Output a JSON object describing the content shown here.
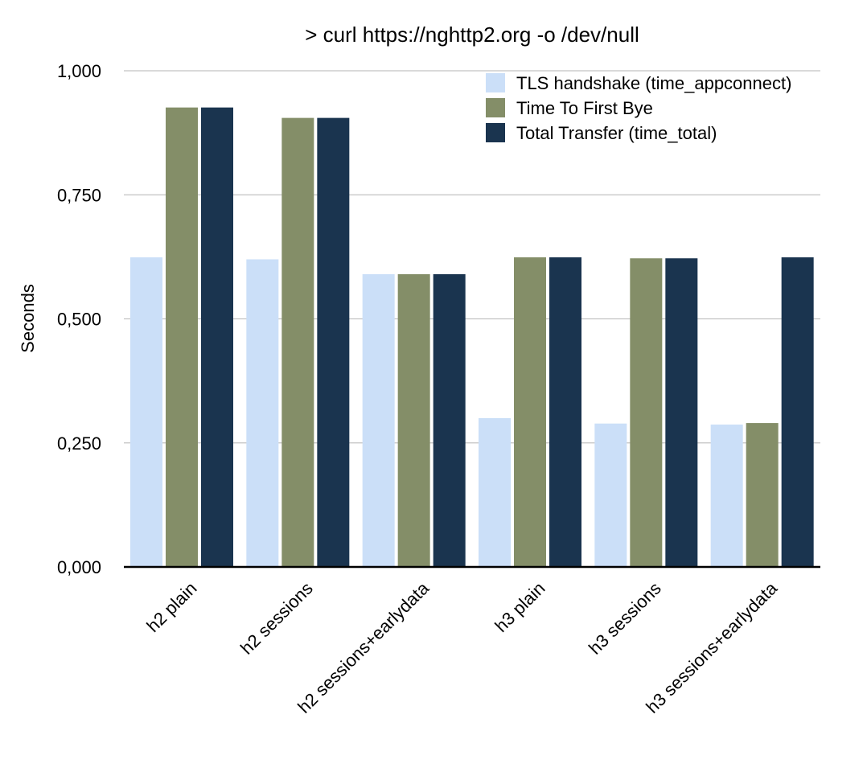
{
  "chart_data": {
    "type": "bar",
    "title": "> curl https://nghttp2.org -o /dev/null",
    "xlabel": "",
    "ylabel": "Seconds",
    "ylim": [
      0,
      1
    ],
    "yticks": [
      {
        "value": 0,
        "label": "0,000"
      },
      {
        "value": 0.25,
        "label": "0,250"
      },
      {
        "value": 0.5,
        "label": "0,500"
      },
      {
        "value": 0.75,
        "label": "0,750"
      },
      {
        "value": 1,
        "label": "1,000"
      }
    ],
    "grid": true,
    "legend_position": "top-right",
    "categories": [
      "h2 plain",
      "h2 sessions",
      "h2 sessions+earlydata",
      "h3 plain",
      "h3 sessions",
      "h3 sessions+earlydata"
    ],
    "series": [
      {
        "name": "TLS handshake (time_appconnect)",
        "color": "#cbdff8",
        "values": [
          0.624,
          0.62,
          0.59,
          0.3,
          0.289,
          0.287
        ]
      },
      {
        "name": "Time To First Bye",
        "color": "#848e68",
        "values": [
          0.926,
          0.905,
          0.59,
          0.624,
          0.622,
          0.29
        ]
      },
      {
        "name": "Total Transfer (time_total)",
        "color": "#1a344f",
        "values": [
          0.926,
          0.905,
          0.59,
          0.624,
          0.622,
          0.624
        ]
      }
    ]
  }
}
